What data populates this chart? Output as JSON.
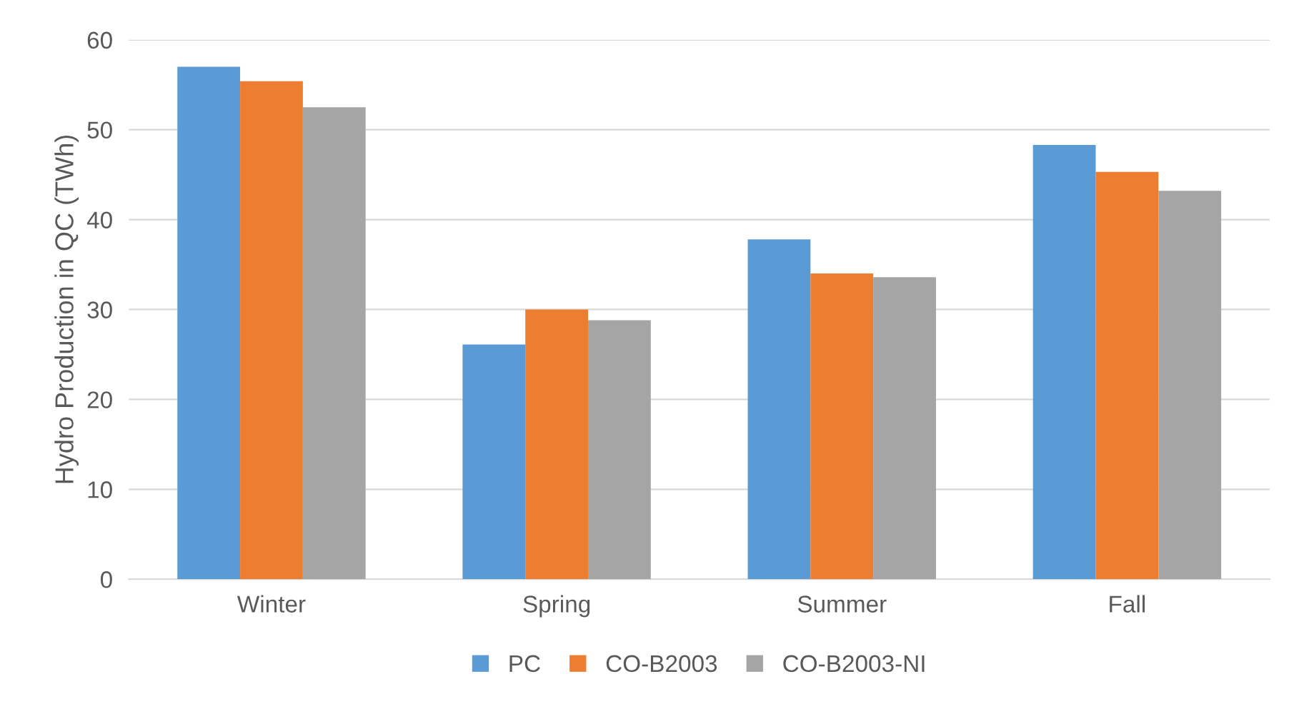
{
  "chart_data": {
    "type": "bar",
    "ylabel": "Hydro Production in QC (TWh)",
    "categories": [
      "Winter",
      "Spring",
      "Summer",
      "Fall"
    ],
    "series": [
      {
        "name": "PC",
        "color": "#5b9bd5",
        "values": [
          57.0,
          26.1,
          37.8,
          48.3
        ]
      },
      {
        "name": "CO-B2003",
        "color": "#ed7d31",
        "values": [
          55.4,
          30.0,
          34.0,
          45.3
        ]
      },
      {
        "name": "CO-B2003-NI",
        "color": "#a5a5a5",
        "values": [
          52.5,
          28.8,
          33.6,
          43.2
        ]
      }
    ],
    "ylim": [
      0,
      60
    ],
    "yticks": [
      0,
      10,
      20,
      30,
      40,
      50,
      60
    ],
    "grid": "y",
    "legend": "bottom"
  }
}
